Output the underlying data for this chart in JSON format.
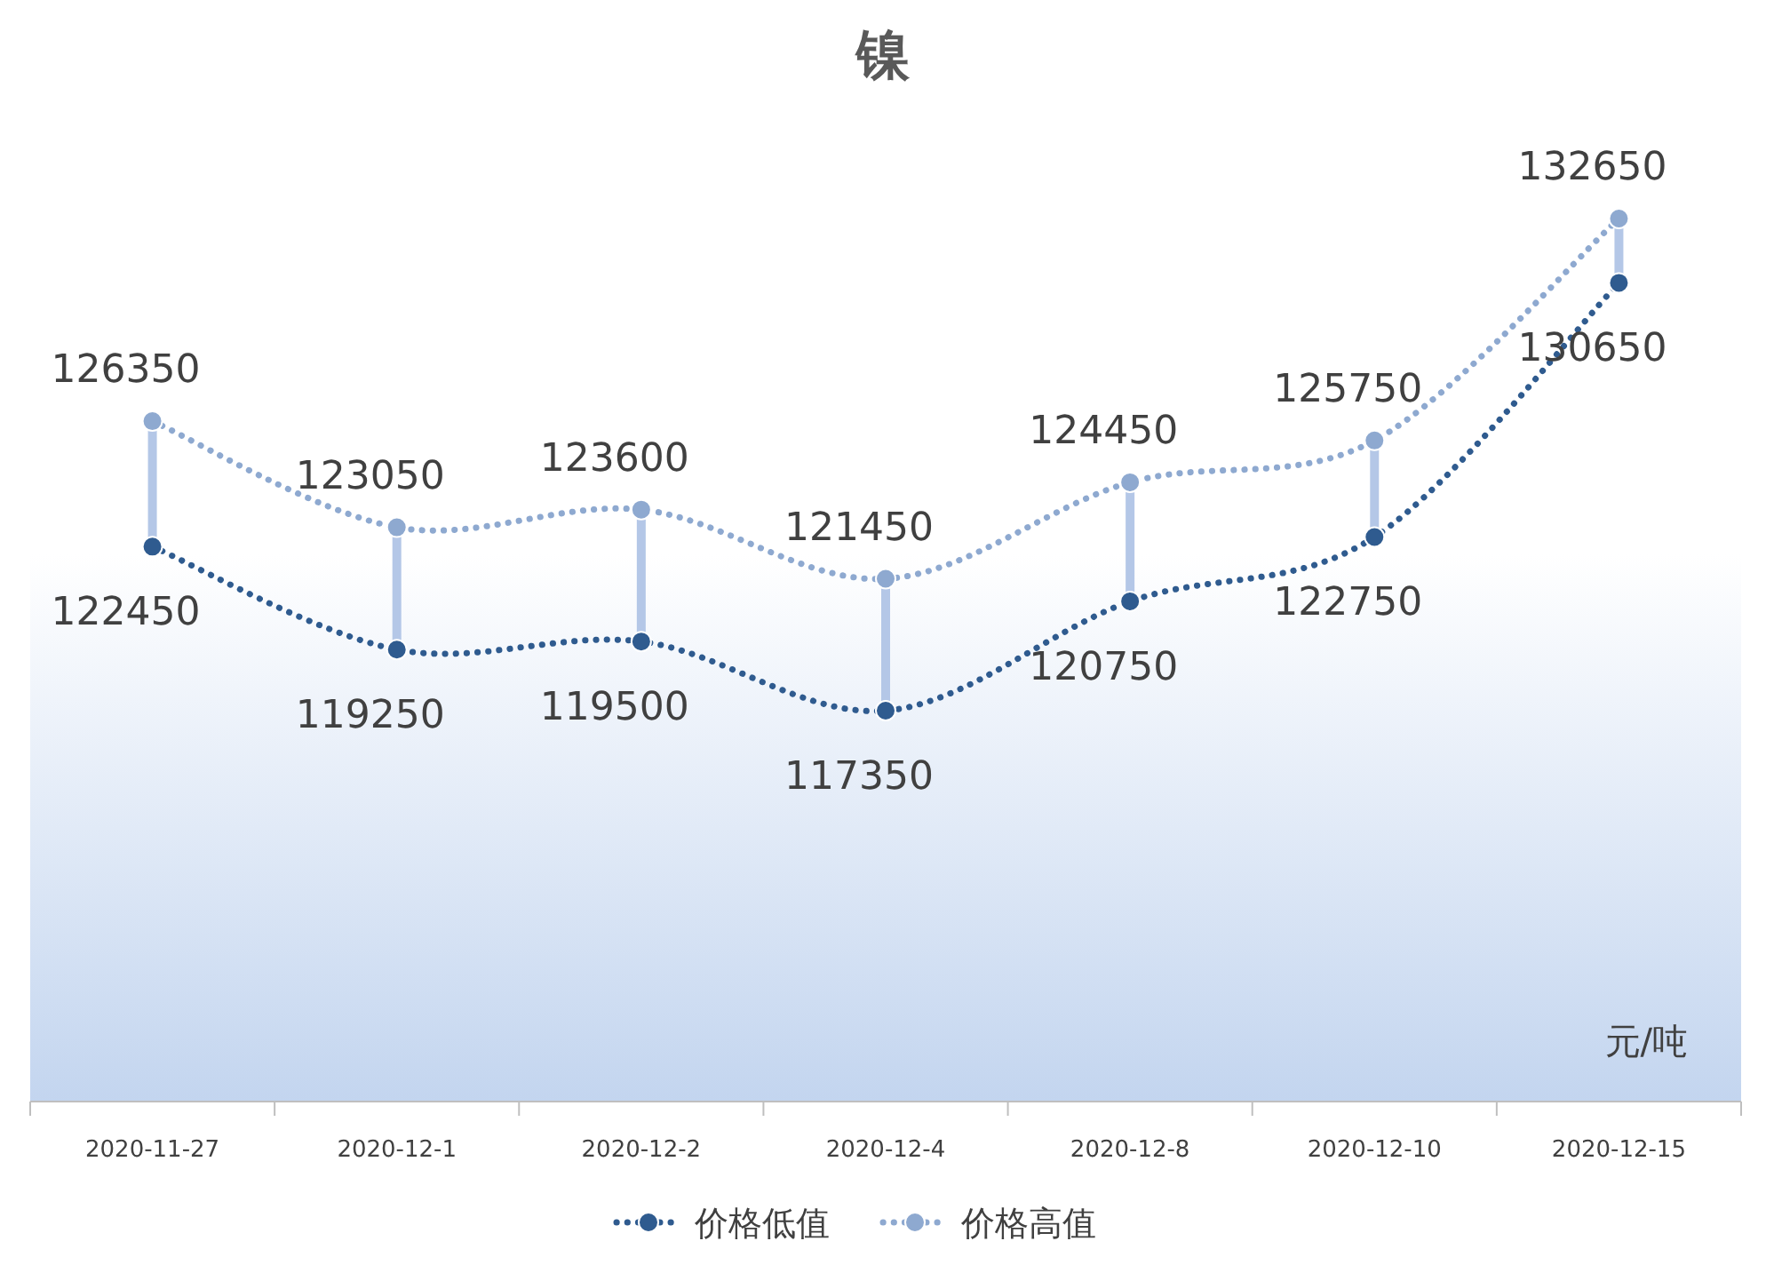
{
  "chart_data": {
    "type": "line",
    "title": "镍",
    "categories": [
      "2020-11-27",
      "2020-12-1",
      "2020-12-2",
      "2020-12-4",
      "2020-12-8",
      "2020-12-10",
      "2020-12-15"
    ],
    "series": [
      {
        "name": "价格低值",
        "color": "#2f5b8f",
        "values": [
          122450,
          119250,
          119500,
          117350,
          120750,
          122750,
          130650
        ]
      },
      {
        "name": "价格高值",
        "color": "#8ea9d0",
        "values": [
          126350,
          123050,
          123600,
          121450,
          124450,
          125750,
          132650
        ]
      }
    ],
    "data_labels": true,
    "marker": "circle",
    "line_style": "dotted",
    "legend": "bottom",
    "grid": false,
    "annotations": [
      "元/吨"
    ]
  }
}
